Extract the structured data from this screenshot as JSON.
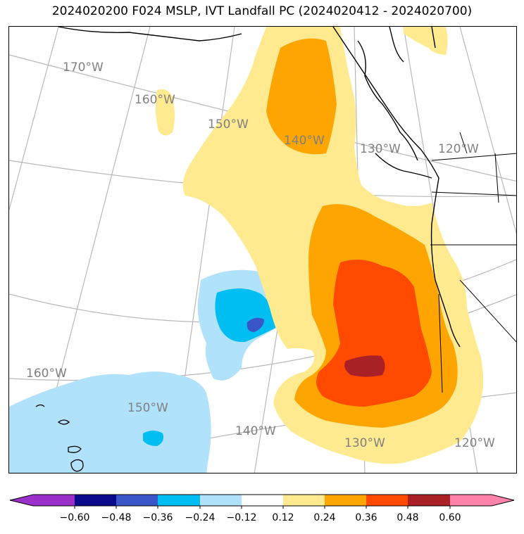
{
  "title": "2024020200 F024 MSLP, IVT Landfall PC (2024020412 - 2024020700)",
  "colors": {
    "neg060": "#9a2fc9",
    "neg048": "#0a0a8a",
    "neg036": "#3a55c8",
    "neg024": "#00bef2",
    "neg012": "#b1e2fb",
    "zero": "#ffffff",
    "pos012": "#ffea8f",
    "pos024": "#ffa502",
    "pos036": "#ff4a00",
    "pos048": "#a92026",
    "pos060": "#ff82aa",
    "grid": "#b8b8b8",
    "coast": "#000000"
  },
  "gridlabels": [
    "170°W",
    "160°W",
    "150°W",
    "140°W",
    "130°W",
    "120°W",
    "160°W",
    "150°W",
    "140°W",
    "130°W",
    "120°W"
  ],
  "colorbar": {
    "ticks": [
      "−0.60",
      "−0.48",
      "−0.36",
      "−0.24",
      "−0.12",
      "0.12",
      "0.24",
      "0.36",
      "0.48",
      "0.60"
    ]
  }
}
